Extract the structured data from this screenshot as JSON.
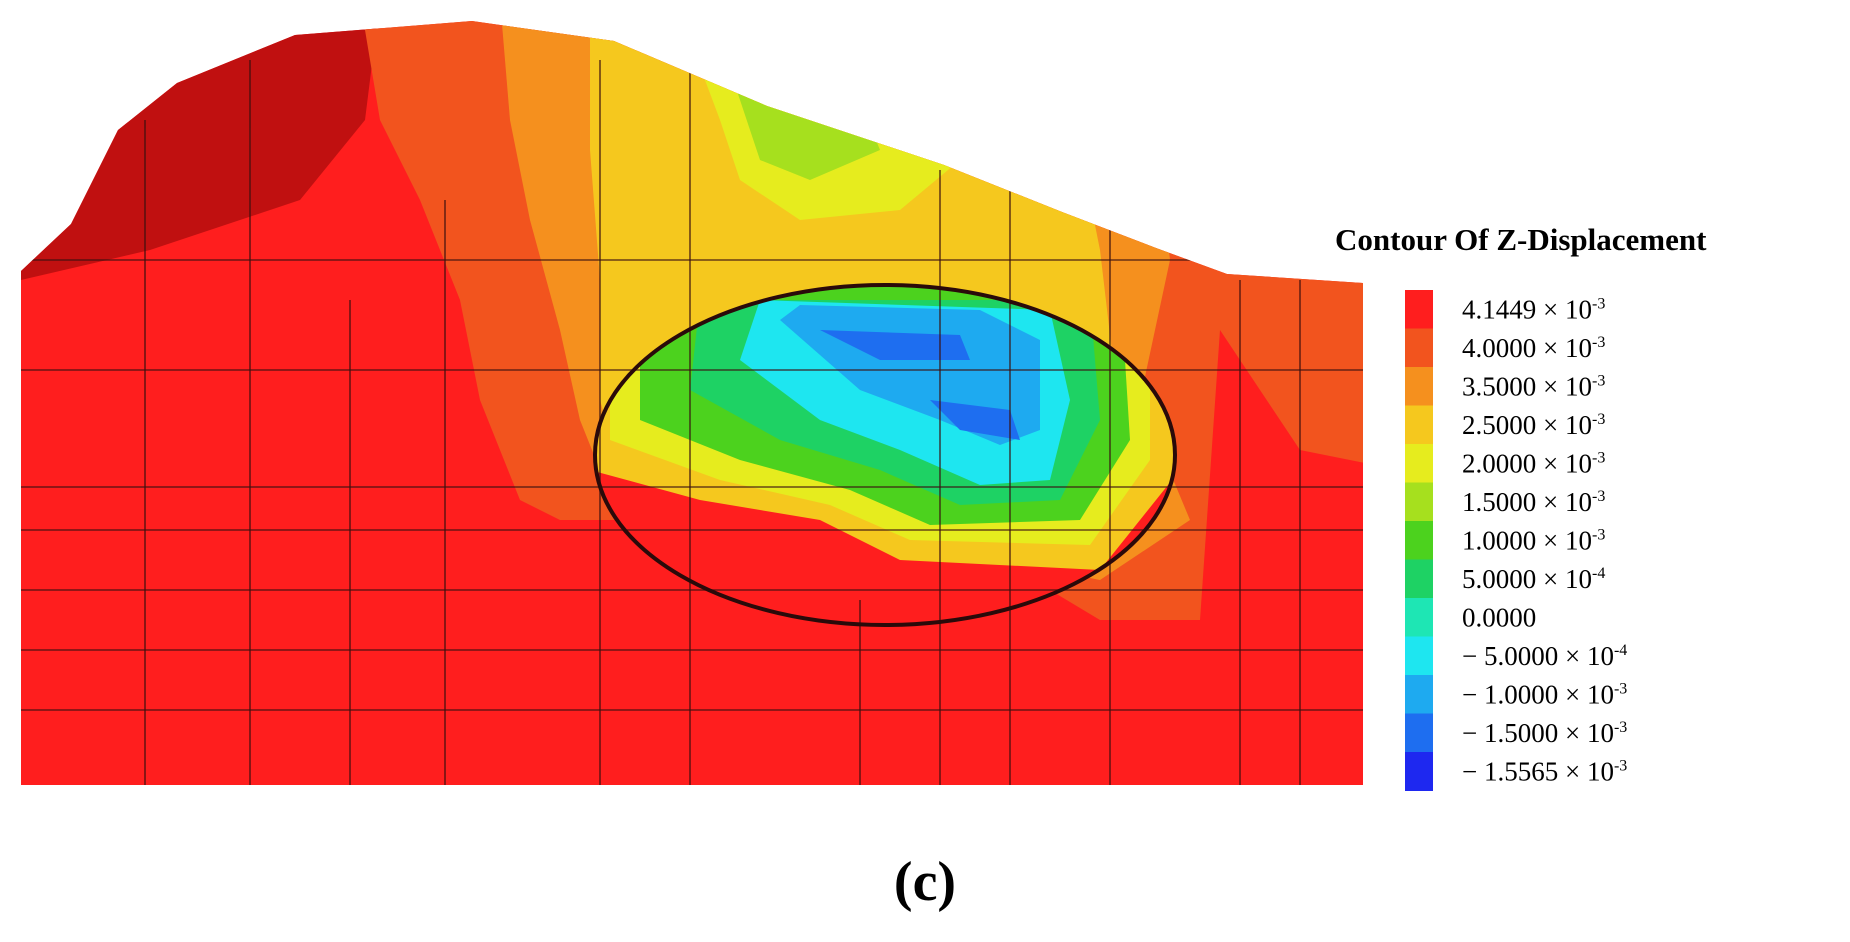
{
  "figure": {
    "legend": {
      "title": "Contour Of Z-Displacement",
      "items": [
        {
          "label": "4.1449 × 10",
          "exponent": "-3",
          "color": "#ff1e1e"
        },
        {
          "label": "4.0000 × 10",
          "exponent": "-3",
          "color": "#f2541e"
        },
        {
          "label": "3.5000 × 10",
          "exponent": "-3",
          "color": "#f5901e"
        },
        {
          "label": "2.5000 × 10",
          "exponent": "-3",
          "color": "#f5c81e"
        },
        {
          "label": "2.0000 × 10",
          "exponent": "-3",
          "color": "#e6ec1e"
        },
        {
          "label": "1.5000 × 10",
          "exponent": "-3",
          "color": "#a6e01e"
        },
        {
          "label": "1.0000 × 10",
          "exponent": "-3",
          "color": "#4cd21e"
        },
        {
          "label": "5.0000 × 10",
          "exponent": "-4",
          "color": "#1ed264"
        },
        {
          "label": "0.0000",
          "color": "#1ee6b4"
        },
        {
          "label": "− 5.0000 × 10",
          "exponent": "-4",
          "color": "#1ee6f0"
        },
        {
          "label": "− 1.0000 × 10",
          "exponent": "-3",
          "color": "#1eaaf0"
        },
        {
          "label": "− 1.5000 × 10",
          "exponent": "-3",
          "color": "#1e6ef0"
        },
        {
          "label": "− 1.5565 × 10",
          "exponent": "-3",
          "color": "#1e28f0"
        }
      ]
    },
    "caption": "(c)"
  }
}
